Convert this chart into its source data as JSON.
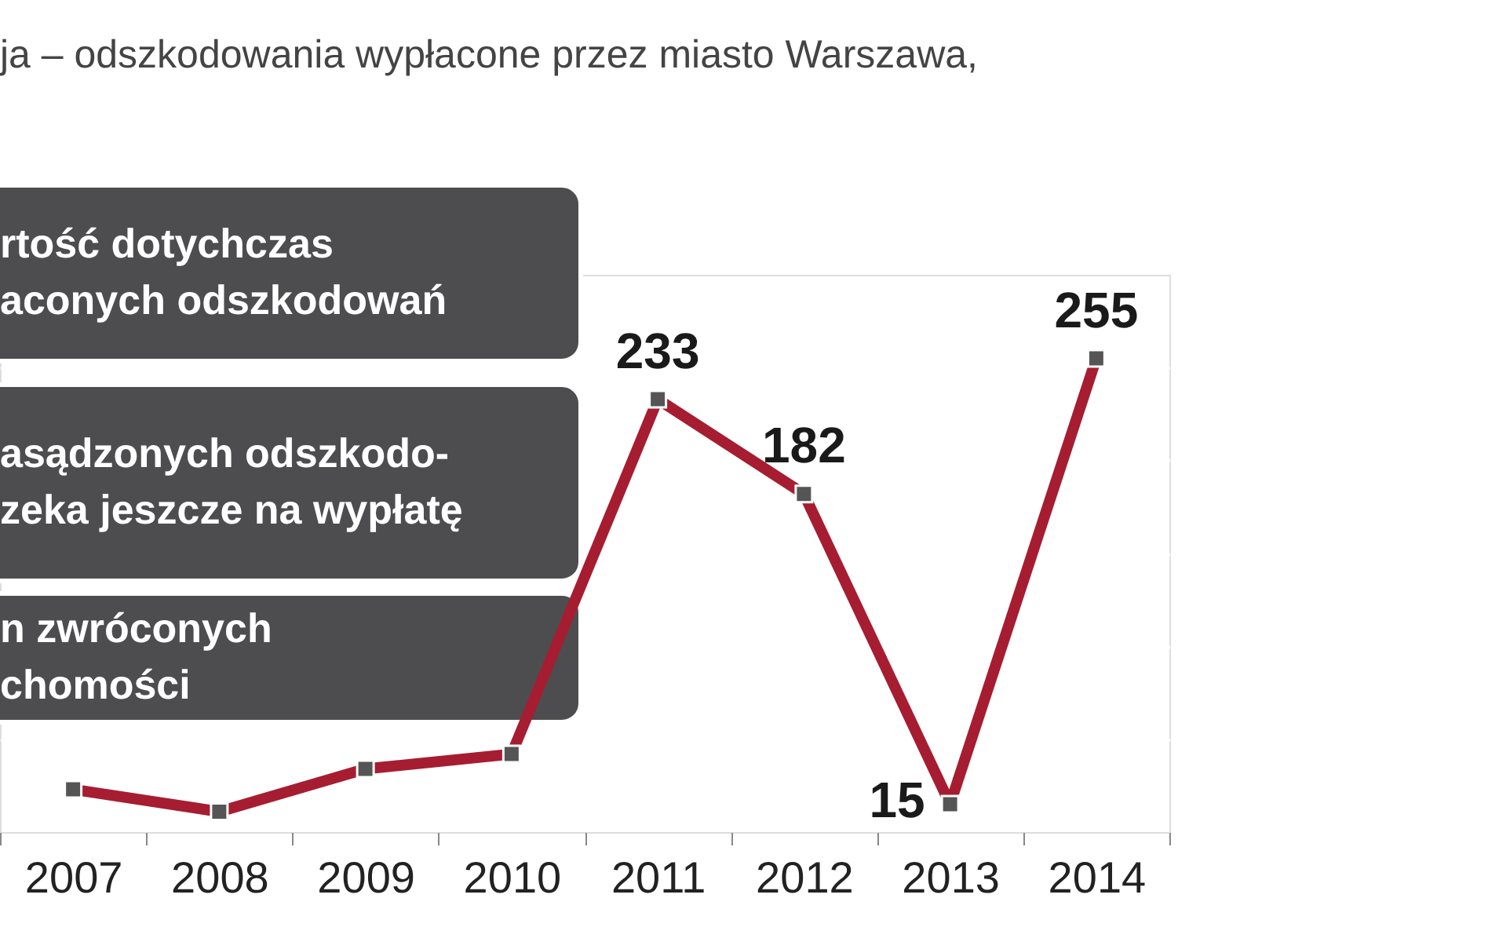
{
  "chart_data": {
    "type": "line",
    "title": "ja – odszkodowania wypłacone przez miasto Warszawa,",
    "categories": [
      "2007",
      "2008",
      "2009",
      "2010",
      "2011",
      "2012",
      "2013",
      "2014"
    ],
    "series": [
      {
        "color": "#a61d31",
        "values": [
          23,
          11,
          34,
          42,
          233,
          182,
          15,
          255
        ],
        "value_labels": [
          null,
          null,
          null,
          null,
          "233",
          "182",
          "15",
          "255"
        ]
      }
    ],
    "ylim": [
      0,
      300
    ],
    "yticks": [
      {
        "value": 50,
        "label": null
      },
      {
        "value": 100,
        "label": null
      },
      {
        "value": 150,
        "label": null
      },
      {
        "value": 200,
        "label": null
      },
      {
        "value": 250,
        "label": null
      }
    ],
    "grid": "y",
    "tick_labels": "x",
    "marker": "square",
    "annotations": [
      "rtość dotychczas\naconych odszkodowań",
      "asądzonych odszkodo-\nzeka jeszcze na wypłatę",
      "n zwróconych\nchomości"
    ]
  }
}
